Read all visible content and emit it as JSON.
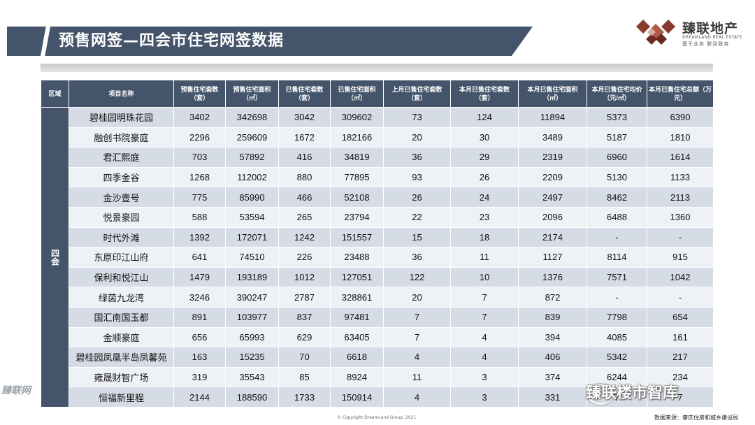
{
  "title": "预售网签—四会市住宅网签数据",
  "logo": {
    "name": "臻联地产",
    "sub": "DREAMLAND REAL ESTATE",
    "slogan": "基于业务 联动致务"
  },
  "table": {
    "headers": [
      "区域",
      "项目名称",
      "预售住宅套数（套）",
      "预售住宅面积（㎡）",
      "已售住宅套数（套）",
      "已售住宅面积（㎡）",
      "上月已售住宅套数（套）",
      "本月已售住宅套数（套）",
      "本月已售住宅面积（㎡）",
      "本月已售住宅均价（元/㎡）",
      "本月已售住宅总额（万元）"
    ],
    "region": "四会",
    "rows": [
      [
        "碧桂园明珠花园",
        "3402",
        "342698",
        "3042",
        "309602",
        "73",
        "124",
        "11894",
        "5373",
        "6390"
      ],
      [
        "融创书院豪庭",
        "2296",
        "259609",
        "1672",
        "182166",
        "20",
        "30",
        "3489",
        "5187",
        "1810"
      ],
      [
        "君汇熙庭",
        "703",
        "57892",
        "416",
        "34819",
        "36",
        "29",
        "2319",
        "6960",
        "1614"
      ],
      [
        "四季金谷",
        "1268",
        "112002",
        "880",
        "77895",
        "93",
        "26",
        "2209",
        "5130",
        "1133"
      ],
      [
        "金沙壹号",
        "775",
        "85990",
        "466",
        "52108",
        "26",
        "24",
        "2497",
        "8462",
        "2113"
      ],
      [
        "悦景豪园",
        "588",
        "53594",
        "265",
        "23794",
        "22",
        "23",
        "2096",
        "6488",
        "1360"
      ],
      [
        "时代外滩",
        "1392",
        "172071",
        "1242",
        "151557",
        "15",
        "18",
        "2174",
        "-",
        "-"
      ],
      [
        "东原印江山府",
        "641",
        "74510",
        "226",
        "23488",
        "36",
        "11",
        "1127",
        "8114",
        "915"
      ],
      [
        "保利和悦江山",
        "1479",
        "193189",
        "1012",
        "127051",
        "122",
        "10",
        "1376",
        "7571",
        "1042"
      ],
      [
        "绿茵九龙湾",
        "3246",
        "390247",
        "2787",
        "328861",
        "20",
        "7",
        "872",
        "-",
        "-"
      ],
      [
        "国汇南国玉都",
        "891",
        "103977",
        "837",
        "97481",
        "7",
        "7",
        "839",
        "7798",
        "654"
      ],
      [
        "金顺豪庭",
        "656",
        "65993",
        "629",
        "63405",
        "7",
        "4",
        "394",
        "4085",
        "161"
      ],
      [
        "碧桂园凤凰半岛凤馨苑",
        "163",
        "15235",
        "70",
        "6618",
        "4",
        "4",
        "406",
        "5342",
        "217"
      ],
      [
        "雍晟财智广场",
        "319",
        "35543",
        "85",
        "8924",
        "11",
        "3",
        "374",
        "6244",
        "234"
      ],
      [
        "恒福新里程",
        "2144",
        "188590",
        "1733",
        "150914",
        "4",
        "3",
        "331",
        "7",
        "7"
      ]
    ]
  },
  "footer": {
    "copyright": "© Copyright DreamLand Group. 2021",
    "source": "数据来源：肇庆住房和城乡建设局"
  },
  "watermark": {
    "brand": "臻联楼市智库",
    "left": "臻联网"
  }
}
